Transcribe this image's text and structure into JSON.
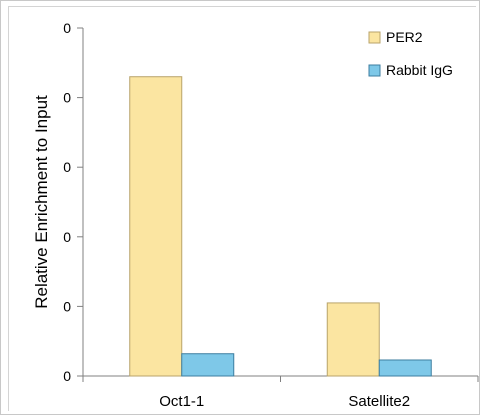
{
  "chart_data": {
    "type": "bar",
    "categories": [
      "Oct1-1",
      "Satellite2"
    ],
    "series": [
      {
        "name": "PER2",
        "values": [
          0.043,
          0.0105
        ],
        "color": "#fbe5a1",
        "stroke": "#b8a36a"
      },
      {
        "name": "Rabbit IgG",
        "values": [
          0.0032,
          0.0023
        ],
        "color": "#7ec8e8",
        "stroke": "#3c7ea0"
      }
    ],
    "ylabel": "Relative Enrichment to Input",
    "xlabel": "",
    "ylim": [
      0,
      0.05
    ],
    "yticks": [
      0,
      0.01,
      0.02,
      0.03,
      0.04,
      0.05
    ],
    "ytick_labels": [
      "0",
      "0",
      "0",
      "0",
      "0",
      "0"
    ],
    "legend_position": "top-right",
    "grid": false
  }
}
